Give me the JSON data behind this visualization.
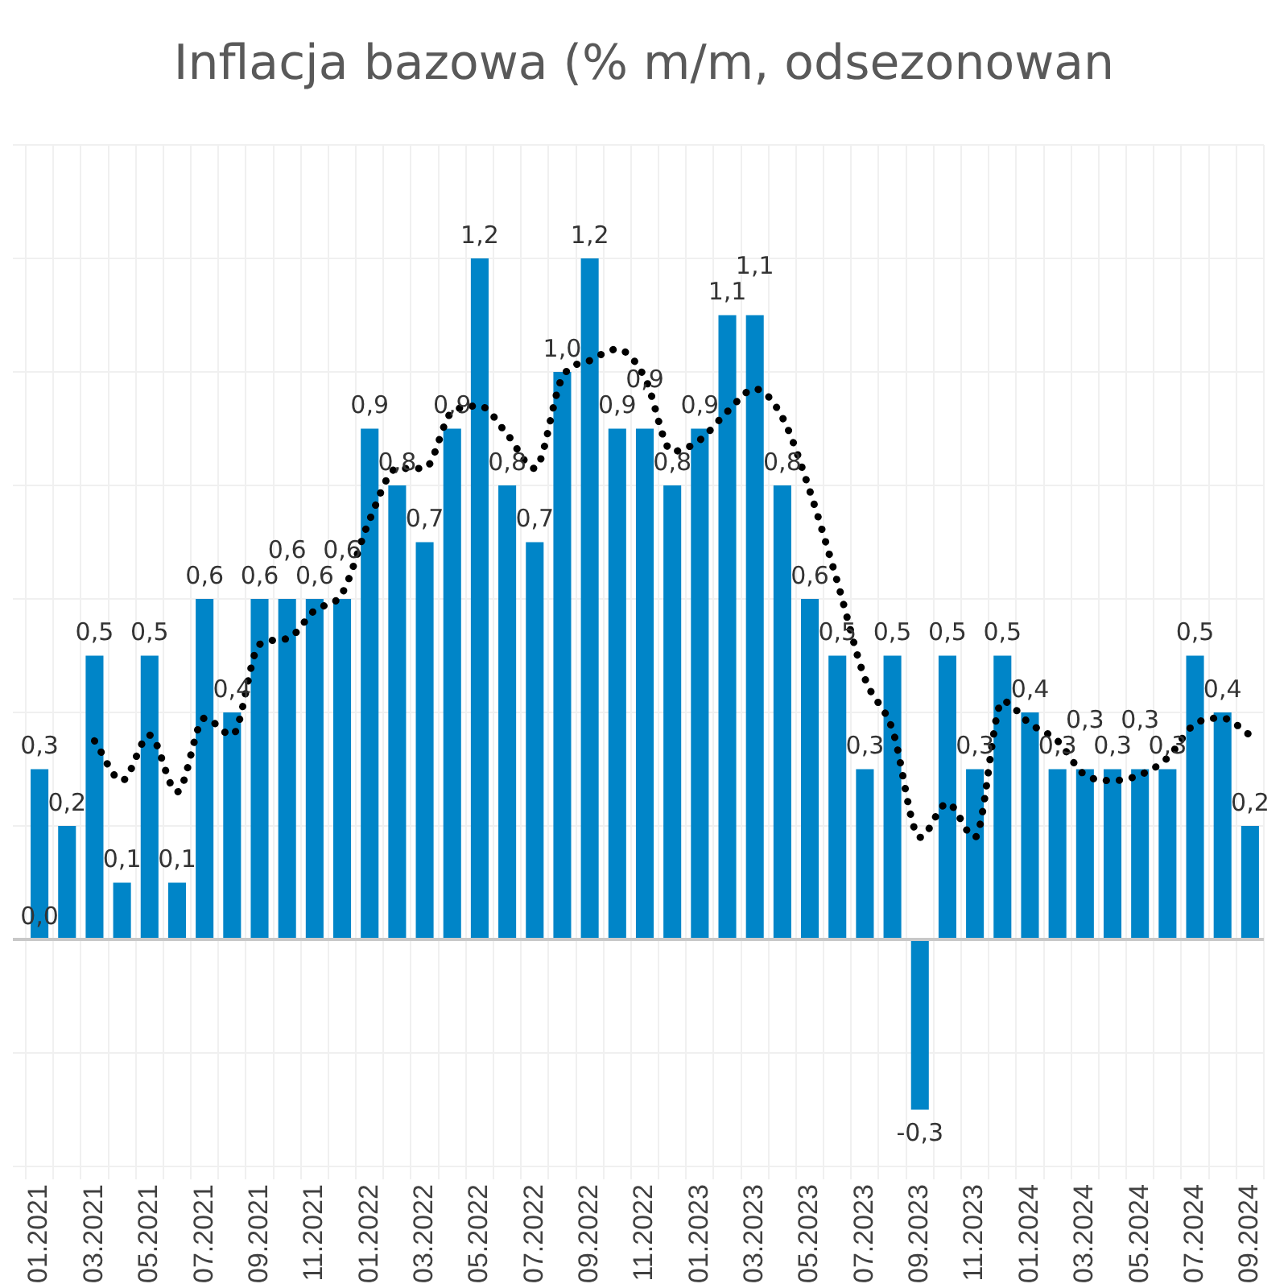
{
  "chart_data": {
    "type": "bar",
    "title": "Inflacja bazowa (% m/m, odsezonowan",
    "categories": [
      "01.2021",
      null,
      "03.2021",
      null,
      "05.2021",
      null,
      "07.2021",
      null,
      "09.2021",
      null,
      "11.2021",
      null,
      "01.2022",
      null,
      "03.2022",
      null,
      "05.2022",
      null,
      "07.2022",
      null,
      "09.2022",
      null,
      "11.2022",
      null,
      "01.2023",
      null,
      "03.2023",
      null,
      "05.2023",
      null,
      "07.2023",
      null,
      "09.2023",
      null,
      "11.2023",
      null,
      "01.2024",
      null,
      "03.2024",
      null,
      "05.2024",
      null,
      "07.2024",
      null,
      "09.2024"
    ],
    "series": [
      {
        "color": "#0085c8",
        "values": [
          0.3,
          0.2,
          0.5,
          0.1,
          0.5,
          0.1,
          0.6,
          0.4,
          0.6,
          0.6,
          0.6,
          0.6,
          0.9,
          0.8,
          0.7,
          0.9,
          1.2,
          0.8,
          0.7,
          1.0,
          1.2,
          0.9,
          0.9,
          0.8,
          0.9,
          1.1,
          1.1,
          0.8,
          0.6,
          0.5,
          0.3,
          0.5,
          -0.3,
          0.5,
          0.3,
          0.5,
          0.4,
          0.3,
          0.3,
          0.3,
          0.3,
          0.3,
          0.5,
          0.4,
          0.2
        ],
        "value_labels": [
          "0,3",
          "0,2",
          "0,5",
          "0,1",
          "0,5",
          "0,1",
          "0,6",
          "0,4",
          "0,6",
          "0,6",
          "0,6",
          "0,6",
          "0,9",
          "0,8",
          "0,7",
          "0,9",
          "1,2",
          "0,8",
          "0,7",
          "1,0",
          "1,2",
          "0,9",
          "0,9",
          "0,8",
          "0,9",
          "1,1",
          "1,1",
          "0,8",
          "0,6",
          "0,5",
          "0,3",
          "0,5",
          "-0,3",
          "0,5",
          "0,3",
          "0,5",
          "0,4",
          "0,3",
          "0,3",
          "0,3",
          "0,3",
          "0,3",
          "0,5",
          "0,4",
          "0,2"
        ]
      },
      {
        "type": "line",
        "color": "#000000",
        "line_style": "dotted",
        "marker": "none",
        "values": [
          null,
          null,
          0.35,
          0.28,
          0.36,
          0.26,
          0.39,
          0.36,
          0.52,
          0.53,
          0.58,
          0.61,
          0.74,
          0.83,
          0.83,
          0.93,
          0.94,
          0.89,
          0.83,
          0.99,
          1.02,
          1.04,
          0.99,
          0.86,
          0.88,
          0.93,
          0.97,
          0.92,
          0.79,
          0.63,
          0.46,
          0.37,
          0.18,
          0.24,
          0.18,
          0.42,
          0.38,
          0.35,
          0.29,
          0.28,
          0.29,
          0.32,
          0.38,
          0.39,
          0.36
        ]
      }
    ],
    "annotations": [
      {
        "text": "0,0",
        "x": "01.2021",
        "y": 0
      }
    ],
    "ylim": [
      -0.4,
      1.4
    ],
    "yticks": [
      {
        "value": -0.4,
        "label": null
      },
      {
        "value": -0.2,
        "label": null
      },
      {
        "value": 0,
        "label": null
      },
      {
        "value": 0.2,
        "label": null
      },
      {
        "value": 0.4,
        "label": null
      },
      {
        "value": 0.6,
        "label": null
      },
      {
        "value": 0.8,
        "label": null
      },
      {
        "value": 1.0,
        "label": null
      },
      {
        "value": 1.2,
        "label": null
      },
      {
        "value": 1.4,
        "label": null
      }
    ],
    "tick_labels": "x",
    "grid": true,
    "legend": false
  }
}
